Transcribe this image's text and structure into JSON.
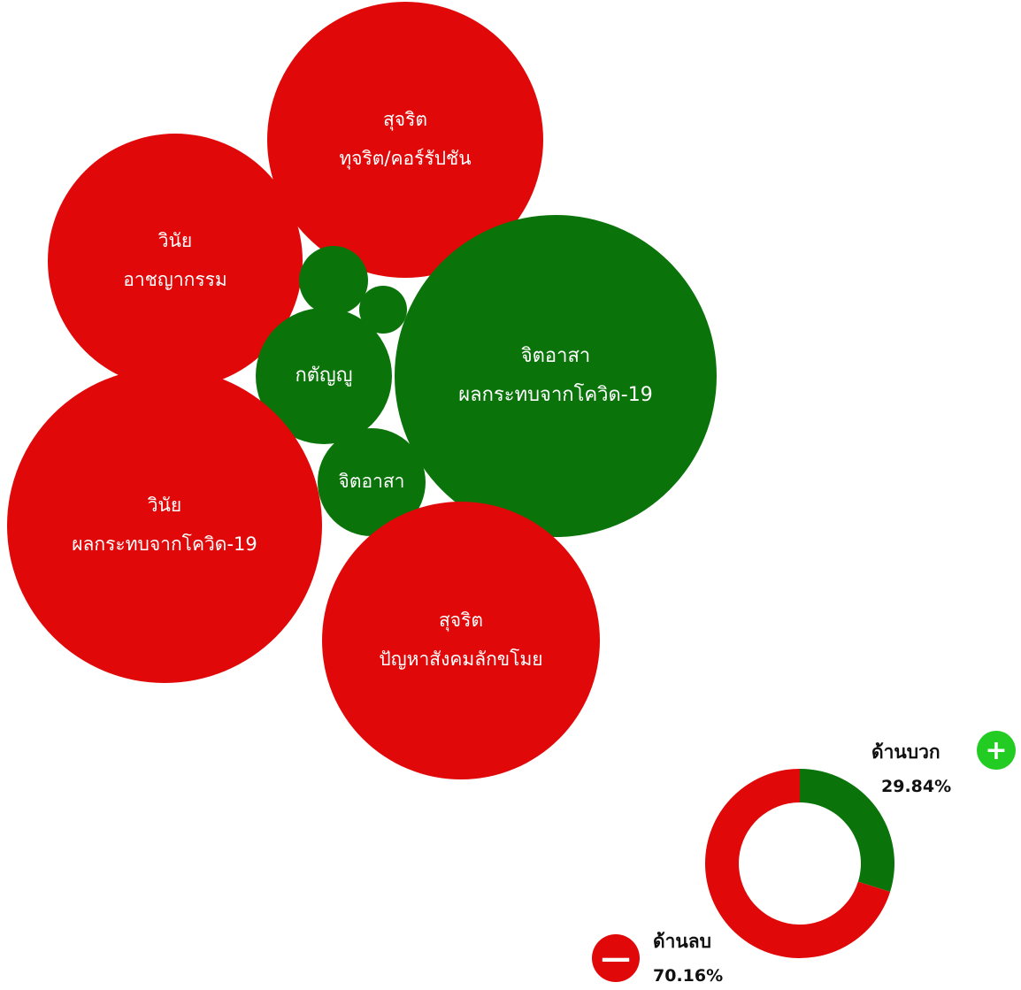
{
  "colors": {
    "negative": "#e00808",
    "positive": "#0a740a",
    "positive_badge": "#22cc22",
    "negative_badge": "#e00808"
  },
  "chart_data": [
    {
      "type": "bubble",
      "bubbles": [
        {
          "lines": [
            "สุจริต",
            "ทุจริต/คอร์รัปชัน"
          ],
          "sentiment": "negative"
        },
        {
          "lines": [
            "วินัย",
            "อาชญากรรม"
          ],
          "sentiment": "negative"
        },
        {
          "lines": [],
          "sentiment": "positive"
        },
        {
          "lines": [],
          "sentiment": "positive"
        },
        {
          "lines": [
            "จิตอาสา",
            "ผลกระทบจากโควิด-19"
          ],
          "sentiment": "positive"
        },
        {
          "lines": [
            "กตัญญู"
          ],
          "sentiment": "positive"
        },
        {
          "lines": [
            "จิตอาสา"
          ],
          "sentiment": "positive"
        },
        {
          "lines": [
            "วินัย",
            "ผลกระทบจากโควิด-19"
          ],
          "sentiment": "negative"
        },
        {
          "lines": [
            "สุจริต",
            "ปัญหาสังคมลักขโมย"
          ],
          "sentiment": "negative"
        }
      ]
    },
    {
      "type": "pie",
      "labels": [
        "ด้านบวก",
        "ด้านลบ"
      ],
      "values": [
        29.84,
        70.16
      ],
      "value_labels": [
        "29.84%",
        "70.16%"
      ]
    }
  ],
  "legend": {
    "positive": {
      "label": "ด้านบวก",
      "value": "29.84%",
      "icon": "plus-icon"
    },
    "negative": {
      "label": "ด้านลบ",
      "value": "70.16%",
      "icon": "minus-icon"
    }
  }
}
